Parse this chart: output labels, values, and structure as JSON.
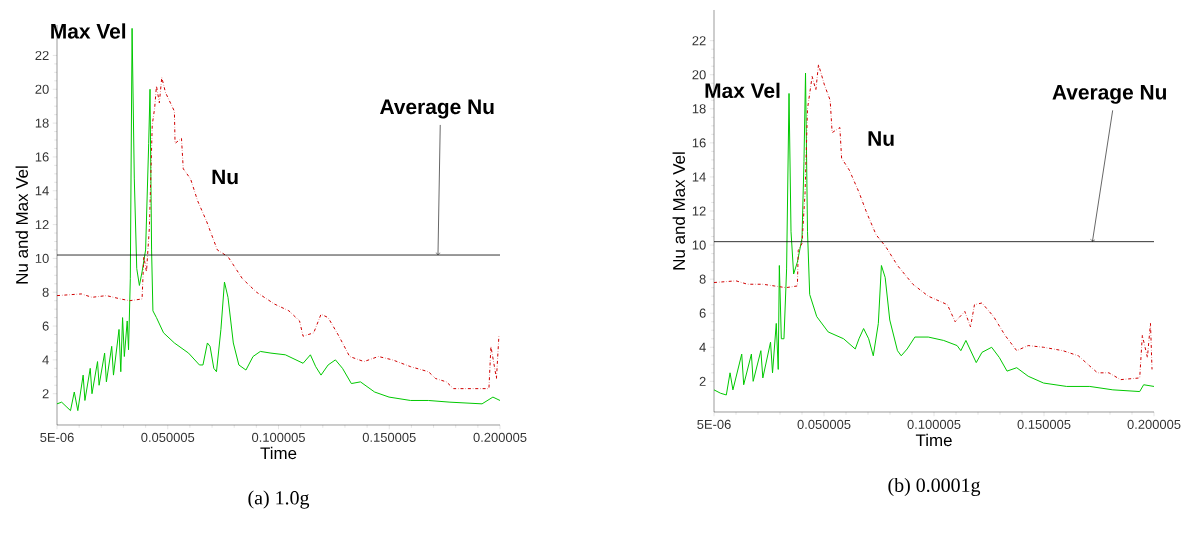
{
  "chart_data": [
    {
      "type": "line",
      "title": "(a) 1.0g",
      "xlabel": "Time",
      "ylabel": "Nu and Max Vel",
      "xlim": [
        5e-06,
        0.200005
      ],
      "ylim": [
        0.15,
        23.8
      ],
      "xticks": [
        {
          "value": 5e-06,
          "label": "5E-06"
        },
        0.050005,
        0.100005,
        0.150005,
        0.200005
      ],
      "yticks": [
        2,
        4,
        6,
        8,
        10,
        12,
        14,
        16,
        18,
        20,
        22
      ],
      "ref_lines": [
        {
          "axis": "y",
          "value": 10.2,
          "label": "Average Nu",
          "color": "#000000"
        }
      ],
      "series": [
        {
          "name": "Max Vel",
          "color": "#00c800",
          "line_style": "solid",
          "x": [
            5e-06,
            0.0021,
            0.0045,
            0.0061,
            0.0078,
            0.0094,
            0.0118,
            0.0126,
            0.015,
            0.0158,
            0.0183,
            0.019,
            0.0215,
            0.0223,
            0.0247,
            0.0255,
            0.028,
            0.0288,
            0.0296,
            0.0304,
            0.0317,
            0.0323,
            0.0331,
            0.0339,
            0.0349,
            0.036,
            0.0372,
            0.0384,
            0.04,
            0.0414,
            0.042,
            0.0427,
            0.0433,
            0.0449,
            0.0481,
            0.053,
            0.0594,
            0.0643,
            0.0659,
            0.0679,
            0.0691,
            0.0708,
            0.072,
            0.074,
            0.0756,
            0.0772,
            0.0796,
            0.0821,
            0.0853,
            0.0885,
            0.0918,
            0.0966,
            0.1031,
            0.1079,
            0.1111,
            0.1144,
            0.1168,
            0.1192,
            0.1224,
            0.1257,
            0.1289,
            0.1329,
            0.137,
            0.1434,
            0.1499,
            0.1596,
            0.1677,
            0.1774,
            0.1919,
            0.1968,
            0.2
          ],
          "values": [
            1.4,
            1.5,
            1.2,
            1.0,
            2.1,
            1.0,
            3.1,
            1.6,
            3.5,
            2.0,
            3.9,
            2.5,
            4.4,
            2.7,
            4.8,
            3.1,
            5.8,
            3.3,
            6.5,
            4.2,
            6.3,
            4.6,
            8.8,
            23.6,
            14.7,
            9.4,
            8.4,
            9.2,
            10.5,
            16.8,
            20.0,
            10.5,
            6.9,
            6.5,
            5.6,
            5.0,
            4.4,
            3.7,
            3.7,
            5.0,
            4.8,
            3.5,
            3.3,
            5.8,
            8.6,
            7.7,
            5.0,
            3.7,
            3.4,
            4.2,
            4.5,
            4.4,
            4.3,
            4.0,
            3.8,
            4.3,
            3.6,
            3.1,
            3.7,
            4.0,
            3.5,
            2.6,
            2.7,
            2.1,
            1.8,
            1.6,
            1.6,
            1.5,
            1.4,
            1.8,
            1.6
          ]
        },
        {
          "name": "Nu",
          "color": "#d00000",
          "line_style": "dashed",
          "x": [
            5e-06,
            0.011,
            0.0158,
            0.0223,
            0.0288,
            0.0328,
            0.0384,
            0.0392,
            0.0404,
            0.0417,
            0.043,
            0.0441,
            0.0449,
            0.0462,
            0.0473,
            0.049,
            0.053,
            0.0533,
            0.0562,
            0.057,
            0.0603,
            0.0635,
            0.0675,
            0.0724,
            0.0772,
            0.0837,
            0.0901,
            0.0982,
            0.1047,
            0.1095,
            0.1111,
            0.1159,
            0.1192,
            0.1224,
            0.1273,
            0.1321,
            0.1386,
            0.1451,
            0.1515,
            0.1596,
            0.1677,
            0.1709,
            0.1758,
            0.179,
            0.1838,
            0.195,
            0.1959,
            0.1984,
            0.1995
          ],
          "values": [
            7.8,
            7.9,
            7.7,
            7.8,
            7.6,
            7.5,
            7.6,
            10.1,
            9.2,
            11.8,
            17.9,
            18.9,
            20.2,
            19.2,
            20.7,
            19.8,
            18.7,
            16.8,
            17.1,
            15.3,
            14.7,
            13.4,
            12.2,
            10.5,
            10.1,
            8.8,
            8.0,
            7.3,
            6.9,
            6.3,
            5.4,
            5.6,
            6.7,
            6.5,
            5.4,
            4.2,
            3.9,
            4.2,
            4.0,
            3.6,
            3.3,
            2.9,
            2.7,
            2.3,
            2.3,
            2.3,
            4.8,
            2.9,
            5.4
          ]
        }
      ]
    },
    {
      "type": "line",
      "title": "(b) 0.0001g",
      "xlabel": "Time",
      "ylabel": "Nu and Max Vel",
      "xlim": [
        5e-06,
        0.200005
      ],
      "ylim": [
        0.2,
        23.8
      ],
      "xticks": [
        {
          "value": 5e-06,
          "label": "5E-06"
        },
        0.050005,
        0.100005,
        0.150005,
        0.200005
      ],
      "yticks": [
        2,
        4,
        6,
        8,
        10,
        12,
        14,
        16,
        18,
        20,
        22
      ],
      "ref_lines": [
        {
          "axis": "y",
          "value": 10.2,
          "label": "Average Nu",
          "color": "#000000"
        }
      ],
      "series": [
        {
          "name": "Max Vel",
          "color": "#00c800",
          "line_style": "solid",
          "x": [
            5e-06,
            0.003,
            0.0056,
            0.0073,
            0.0086,
            0.0126,
            0.0135,
            0.017,
            0.0178,
            0.0213,
            0.0222,
            0.0257,
            0.0266,
            0.0283,
            0.0292,
            0.0297,
            0.0306,
            0.0318,
            0.033,
            0.0341,
            0.035,
            0.0362,
            0.0379,
            0.04,
            0.0409,
            0.0416,
            0.0425,
            0.0435,
            0.0467,
            0.0519,
            0.0589,
            0.0642,
            0.0659,
            0.068,
            0.0703,
            0.0724,
            0.0747,
            0.0761,
            0.0778,
            0.0799,
            0.0834,
            0.0851,
            0.0878,
            0.0913,
            0.0974,
            0.1044,
            0.1105,
            0.1122,
            0.1145,
            0.1192,
            0.1218,
            0.1262,
            0.1297,
            0.1332,
            0.1376,
            0.1428,
            0.1498,
            0.1603,
            0.1708,
            0.1813,
            0.1935,
            0.1953,
            0.2
          ],
          "values": [
            1.5,
            1.3,
            1.2,
            2.5,
            1.5,
            3.6,
            1.8,
            3.6,
            2.0,
            3.8,
            2.2,
            4.3,
            2.5,
            5.4,
            2.7,
            8.8,
            4.5,
            4.5,
            8.6,
            18.9,
            10.8,
            8.3,
            9.0,
            10.4,
            14.9,
            20.1,
            10.8,
            7.1,
            5.8,
            4.9,
            4.5,
            3.9,
            4.5,
            5.1,
            4.5,
            3.5,
            5.4,
            8.8,
            8.1,
            5.6,
            3.8,
            3.5,
            3.9,
            4.6,
            4.6,
            4.4,
            4.1,
            3.8,
            4.4,
            3.1,
            3.7,
            4.0,
            3.4,
            2.6,
            2.8,
            2.3,
            1.9,
            1.7,
            1.7,
            1.5,
            1.4,
            1.8,
            1.7
          ]
        },
        {
          "name": "Nu",
          "color": "#d00000",
          "line_style": "dashed",
          "x": [
            5e-06,
            0.01,
            0.0152,
            0.0222,
            0.0274,
            0.0327,
            0.0379,
            0.0383,
            0.04,
            0.0414,
            0.0425,
            0.0435,
            0.0446,
            0.0463,
            0.0475,
            0.0502,
            0.0528,
            0.0537,
            0.0572,
            0.058,
            0.0615,
            0.0659,
            0.0694,
            0.0737,
            0.0781,
            0.0834,
            0.0904,
            0.0974,
            0.1061,
            0.1096,
            0.114,
            0.1166,
            0.1184,
            0.1218,
            0.1271,
            0.1323,
            0.1376,
            0.1428,
            0.1498,
            0.1586,
            0.1656,
            0.1708,
            0.1743,
            0.1795,
            0.1848,
            0.1935,
            0.1947,
            0.197,
            0.1984,
            0.1991
          ],
          "values": [
            7.8,
            7.9,
            7.7,
            7.7,
            7.6,
            7.5,
            7.6,
            9.7,
            10.1,
            13.1,
            18.0,
            18.9,
            19.9,
            19.1,
            20.6,
            19.4,
            18.5,
            16.6,
            16.9,
            15.1,
            14.4,
            13.1,
            11.9,
            10.6,
            9.9,
            8.8,
            7.7,
            7.0,
            6.5,
            5.5,
            6.1,
            5.2,
            6.5,
            6.6,
            5.8,
            4.7,
            3.8,
            4.1,
            4.0,
            3.8,
            3.5,
            2.9,
            2.5,
            2.5,
            2.1,
            2.2,
            4.7,
            3.4,
            5.4,
            2.7
          ]
        }
      ]
    }
  ]
}
